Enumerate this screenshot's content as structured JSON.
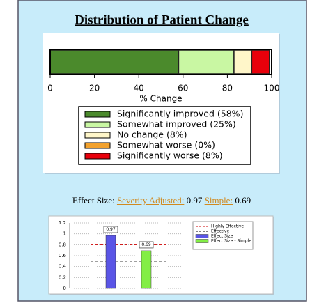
{
  "title": "Distribution of Patient Change",
  "effect_size": {
    "label": "Effect Size:",
    "severity_label": "Severity Adjusted:",
    "simple_label": "Simple:"
  },
  "chart_data": [
    {
      "type": "bar",
      "orientation": "horizontal",
      "stacked": true,
      "xlabel": "% Change",
      "xlim": [
        0,
        100
      ],
      "xticks": [
        0,
        20,
        40,
        60,
        80,
        100
      ],
      "series": [
        {
          "name": "Significantly improved (58%)",
          "color": "#4b8a2c",
          "values": [
            58
          ]
        },
        {
          "name": "Somewhat improved (25%)",
          "color": "#c9f7a3",
          "values": [
            25
          ]
        },
        {
          "name": "No change (8%)",
          "color": "#fff6c9",
          "values": [
            8
          ]
        },
        {
          "name": "Somewhat worse (0%)",
          "color": "#f2a12d",
          "values": [
            0
          ]
        },
        {
          "name": "Significantly worse (8%)",
          "color": "#e8000b",
          "values": [
            8
          ]
        }
      ]
    },
    {
      "type": "bar",
      "ylim": [
        0,
        1.2
      ],
      "yticks": [
        0,
        0.2,
        0.4,
        0.6,
        0.8,
        1,
        1.2
      ],
      "grid": true,
      "series": [
        {
          "name": "Effect Size",
          "color": "#5a55e6",
          "values": [
            0.97
          ]
        },
        {
          "name": "Effect Size - Simple",
          "color": "#83ee45",
          "values": [
            0.69
          ]
        }
      ],
      "reference_lines": [
        {
          "name": "Highly Effective",
          "value": 0.8,
          "color": "#cc0000"
        },
        {
          "name": "Effective",
          "value": 0.5,
          "color": "#000000"
        }
      ]
    }
  ]
}
